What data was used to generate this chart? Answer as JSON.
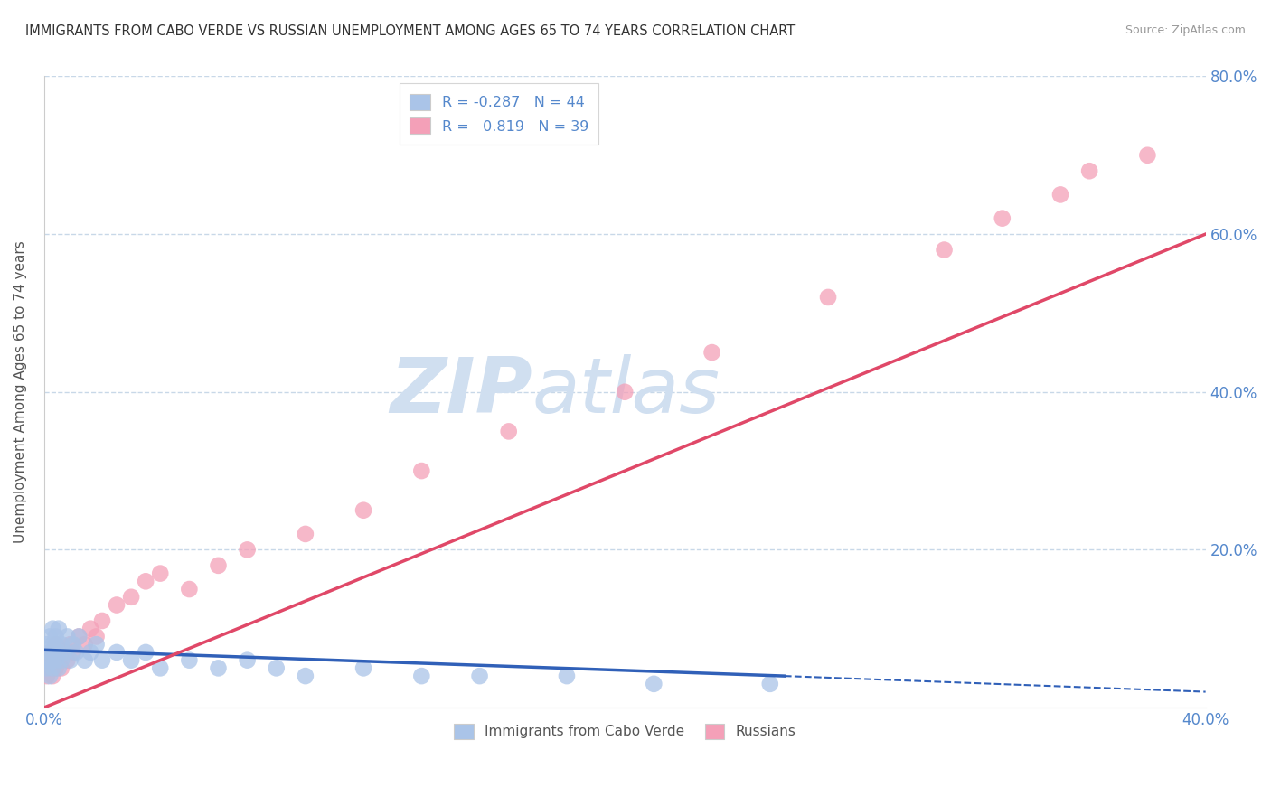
{
  "title": "IMMIGRANTS FROM CABO VERDE VS RUSSIAN UNEMPLOYMENT AMONG AGES 65 TO 74 YEARS CORRELATION CHART",
  "source": "Source: ZipAtlas.com",
  "ylabel": "Unemployment Among Ages 65 to 74 years",
  "xlim": [
    0.0,
    0.4
  ],
  "ylim": [
    0.0,
    0.8
  ],
  "xticks": [
    0.0,
    0.05,
    0.1,
    0.15,
    0.2,
    0.25,
    0.3,
    0.35,
    0.4
  ],
  "yticks": [
    0.0,
    0.2,
    0.4,
    0.6,
    0.8
  ],
  "cabo_verde_R": -0.287,
  "cabo_verde_N": 44,
  "russian_R": 0.819,
  "russian_N": 39,
  "cabo_verde_color": "#aac4e8",
  "russian_color": "#f4a0b8",
  "cabo_verde_line_color": "#3060b8",
  "russian_line_color": "#e04868",
  "background_color": "#ffffff",
  "grid_color": "#c8d8e8",
  "watermark_zip": "ZIP",
  "watermark_atlas": "atlas",
  "watermark_color": "#d0dff0",
  "tick_color": "#5588cc",
  "cabo_verde_x": [
    0.001,
    0.001,
    0.001,
    0.002,
    0.002,
    0.002,
    0.002,
    0.003,
    0.003,
    0.003,
    0.003,
    0.004,
    0.004,
    0.004,
    0.005,
    0.005,
    0.005,
    0.006,
    0.006,
    0.007,
    0.008,
    0.009,
    0.01,
    0.011,
    0.012,
    0.014,
    0.016,
    0.018,
    0.02,
    0.025,
    0.03,
    0.035,
    0.04,
    0.05,
    0.06,
    0.07,
    0.08,
    0.09,
    0.11,
    0.13,
    0.15,
    0.18,
    0.21,
    0.25
  ],
  "cabo_verde_y": [
    0.05,
    0.06,
    0.08,
    0.04,
    0.06,
    0.07,
    0.09,
    0.05,
    0.07,
    0.08,
    0.1,
    0.06,
    0.08,
    0.09,
    0.05,
    0.07,
    0.1,
    0.06,
    0.08,
    0.07,
    0.09,
    0.06,
    0.08,
    0.07,
    0.09,
    0.06,
    0.07,
    0.08,
    0.06,
    0.07,
    0.06,
    0.07,
    0.05,
    0.06,
    0.05,
    0.06,
    0.05,
    0.04,
    0.05,
    0.04,
    0.04,
    0.04,
    0.03,
    0.03
  ],
  "russian_x": [
    0.001,
    0.001,
    0.002,
    0.002,
    0.003,
    0.003,
    0.004,
    0.004,
    0.005,
    0.005,
    0.006,
    0.007,
    0.008,
    0.009,
    0.01,
    0.012,
    0.014,
    0.016,
    0.018,
    0.02,
    0.025,
    0.03,
    0.035,
    0.04,
    0.05,
    0.06,
    0.07,
    0.09,
    0.11,
    0.13,
    0.16,
    0.2,
    0.23,
    0.27,
    0.31,
    0.33,
    0.35,
    0.36,
    0.38
  ],
  "russian_y": [
    0.04,
    0.06,
    0.05,
    0.07,
    0.04,
    0.06,
    0.05,
    0.08,
    0.06,
    0.07,
    0.05,
    0.07,
    0.06,
    0.08,
    0.07,
    0.09,
    0.08,
    0.1,
    0.09,
    0.11,
    0.13,
    0.14,
    0.16,
    0.17,
    0.15,
    0.18,
    0.2,
    0.22,
    0.25,
    0.3,
    0.35,
    0.4,
    0.45,
    0.52,
    0.58,
    0.62,
    0.65,
    0.68,
    0.7
  ],
  "cabo_verde_trend_x0": 0.0,
  "cabo_verde_trend_y0": 0.073,
  "cabo_verde_trend_x1": 0.255,
  "cabo_verde_trend_y1": 0.04,
  "cabo_verde_trend_dash_x0": 0.255,
  "cabo_verde_trend_dash_y0": 0.04,
  "cabo_verde_trend_dash_x1": 0.4,
  "cabo_verde_trend_dash_y1": 0.02,
  "russian_trend_x0": 0.0,
  "russian_trend_y0": 0.0,
  "russian_trend_x1": 0.4,
  "russian_trend_y1": 0.6
}
